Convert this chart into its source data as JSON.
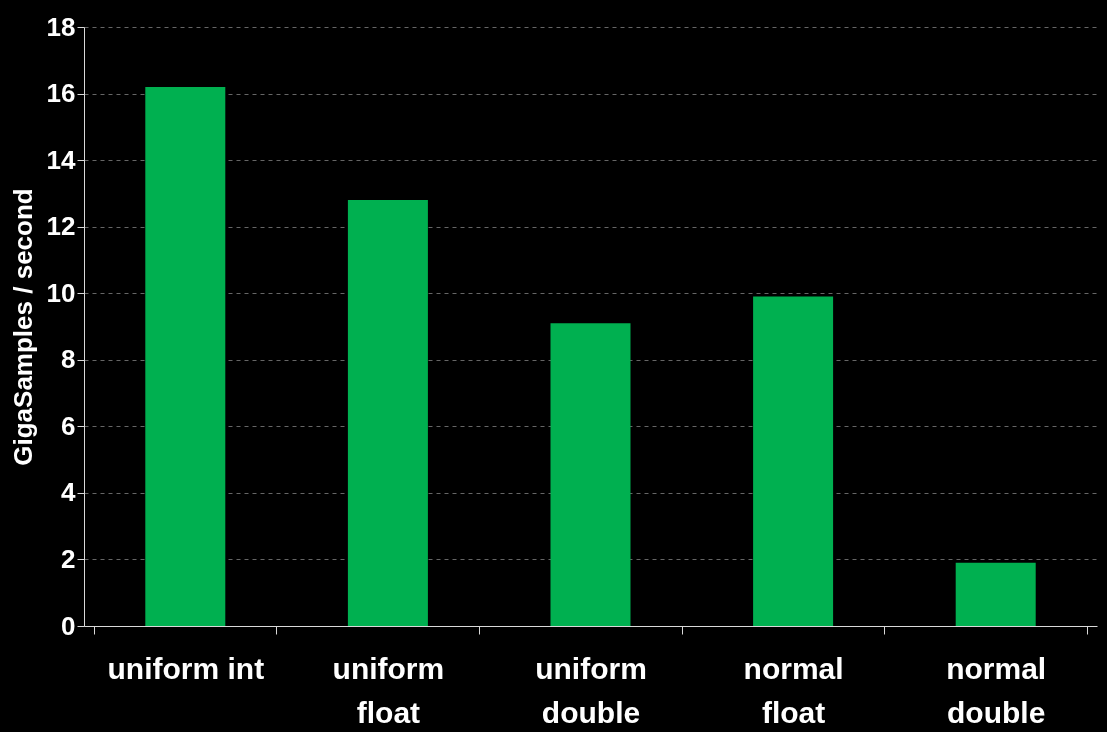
{
  "chart_data": {
    "type": "bar",
    "ylabel": "GigaSamples / second",
    "categories": [
      "uniform int",
      "uniform float",
      "uniform double",
      "normal float",
      "normal double"
    ],
    "values": [
      16.2,
      12.8,
      9.1,
      9.9,
      1.9
    ],
    "color": "#00b050",
    "ylim": [
      0,
      18
    ],
    "yticks": [
      0,
      2,
      4,
      6,
      8,
      10,
      12,
      14,
      16,
      18
    ],
    "grid": "y"
  }
}
